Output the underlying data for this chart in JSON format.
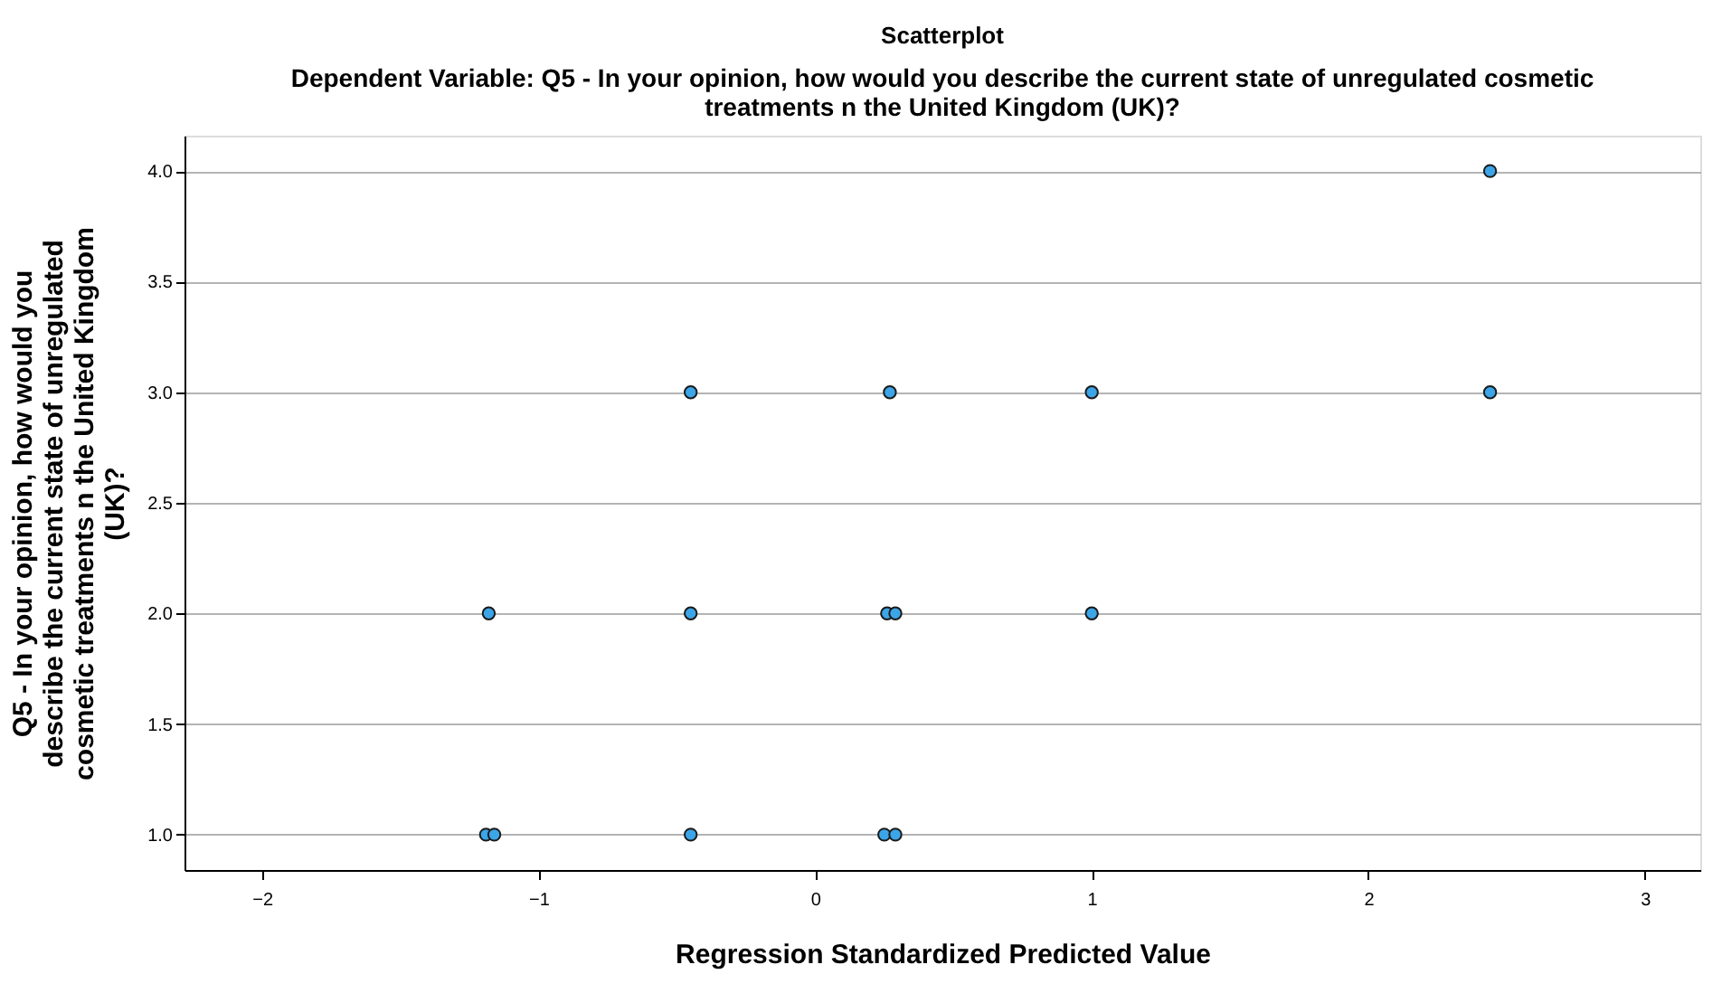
{
  "chart_data": {
    "type": "scatter",
    "title": "Scatterplot",
    "subtitle": "Dependent Variable: Q5 - In your opinion, how would you describe the current state of unregulated cosmetic\ntreatments n the United Kingdom (UK)?",
    "xlabel": "Regression Standardized Predicted Value",
    "ylabel": "Q5 - In your opinion, how would you\ndescribe the current state of unregulated\ncosmetic treatments n the United Kingdom\n(UK)?",
    "series": [
      {
        "color": "#3ca5e8",
        "x": [
          2.44,
          -0.45,
          0.27,
          1.0,
          2.44,
          -1.18,
          -0.45,
          0.26,
          0.29,
          1.0,
          -1.19,
          -1.16,
          -0.45,
          0.25,
          0.29
        ],
        "values": [
          4,
          3,
          3,
          3,
          3,
          2,
          2,
          2,
          2,
          2,
          1,
          1,
          1,
          1,
          1
        ]
      }
    ],
    "xlim": [
      -2.28,
      3.2
    ],
    "xticks": [
      -2,
      -1,
      0,
      1,
      2,
      3
    ],
    "ylim": [
      0.84,
      4.16
    ],
    "yticks": [
      {
        "value": 1,
        "label": "1.0"
      },
      {
        "value": 1.5,
        "label": "1.5"
      },
      {
        "value": 2,
        "label": "2.0"
      },
      {
        "value": 2.5,
        "label": "2.5"
      },
      {
        "value": 3,
        "label": "3.0"
      },
      {
        "value": 3.5,
        "label": "3.5"
      },
      {
        "value": 4,
        "label": "4.0"
      }
    ],
    "grid": "y",
    "marker": "circle"
  }
}
